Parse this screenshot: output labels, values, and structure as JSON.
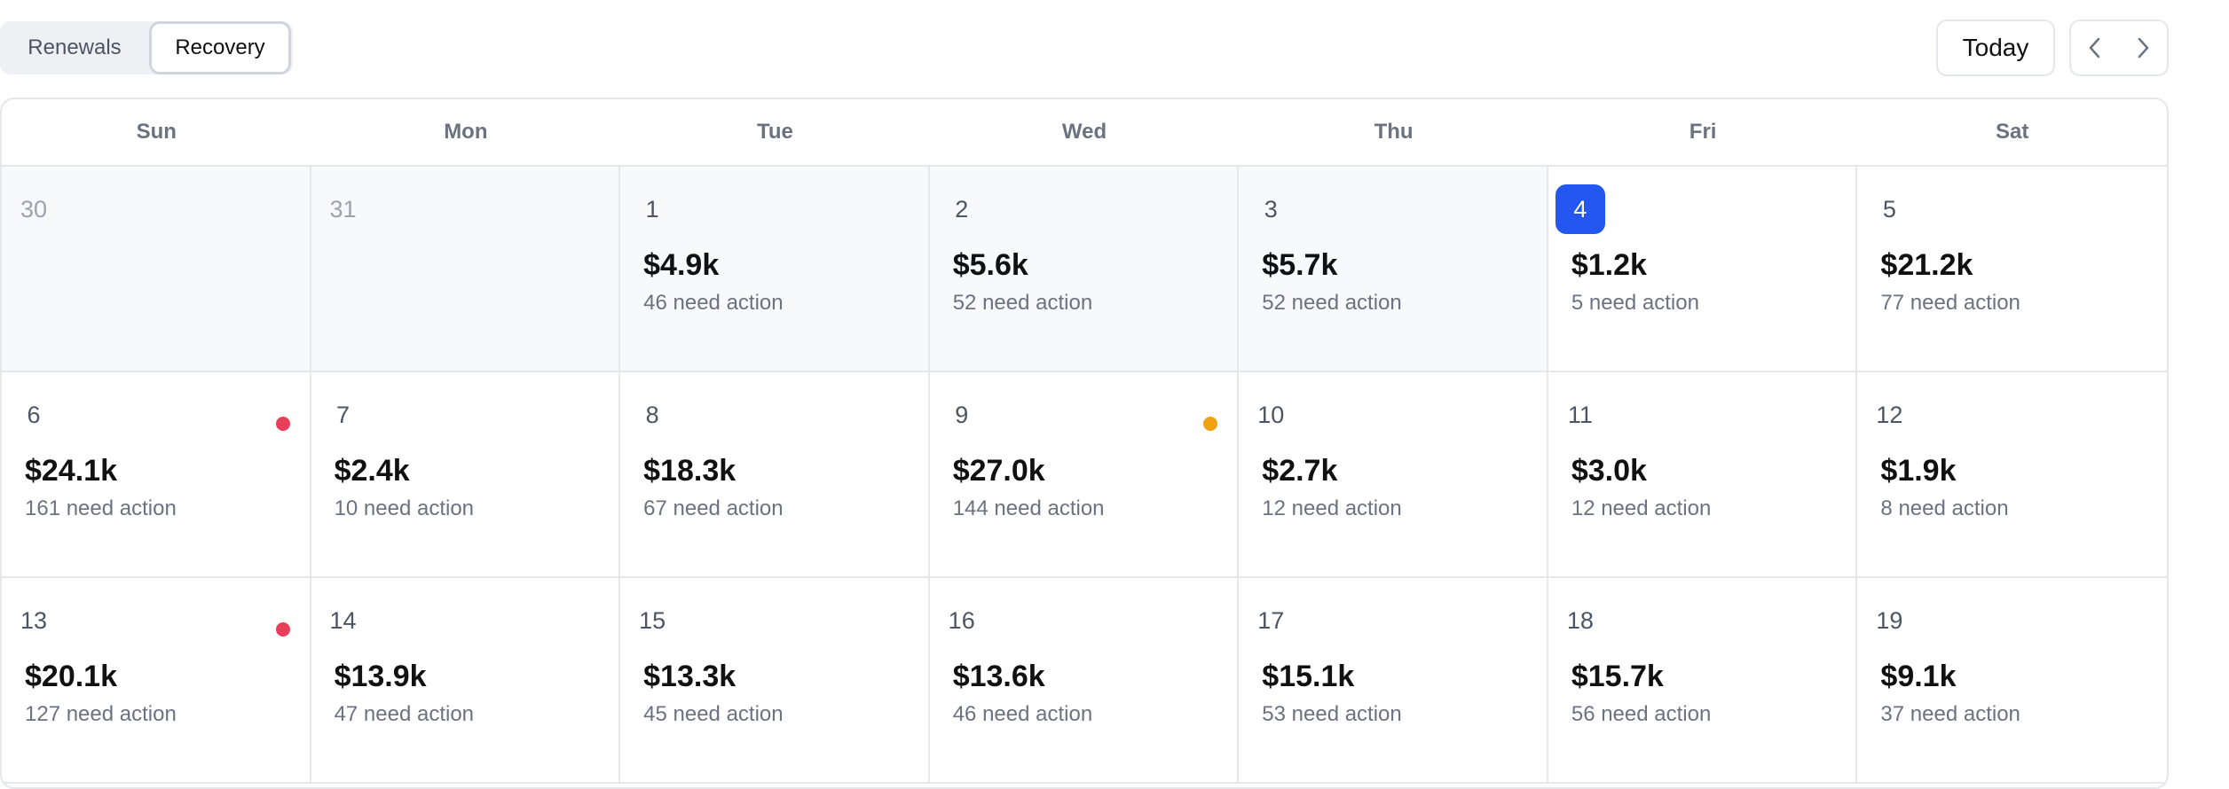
{
  "toggle": {
    "options": [
      "Renewals",
      "Recovery"
    ],
    "active": "Recovery"
  },
  "toolbar": {
    "today_label": "Today",
    "prev_icon": "chevron-left-icon",
    "next_icon": "chevron-right-icon"
  },
  "colors": {
    "today_bg": "#2456f0",
    "dot_red": "#e8405a",
    "dot_orange": "#f0a010"
  },
  "calendar": {
    "weekdays": [
      "Sun",
      "Mon",
      "Tue",
      "Wed",
      "Thu",
      "Fri",
      "Sat"
    ],
    "weeks": [
      [
        {
          "date": "30",
          "faded": true,
          "muted": true
        },
        {
          "date": "31",
          "faded": true,
          "muted": true
        },
        {
          "date": "1",
          "amount": "$4.9k",
          "need": "46 need action",
          "muted": true
        },
        {
          "date": "2",
          "amount": "$5.6k",
          "need": "52 need action",
          "muted": true
        },
        {
          "date": "3",
          "amount": "$5.7k",
          "need": "52 need action",
          "muted": true
        },
        {
          "date": "4",
          "amount": "$1.2k",
          "need": "5 need action",
          "today": true
        },
        {
          "date": "5",
          "amount": "$21.2k",
          "need": "77 need action"
        }
      ],
      [
        {
          "date": "6",
          "amount": "$24.1k",
          "need": "161 need action",
          "dot": "red"
        },
        {
          "date": "7",
          "amount": "$2.4k",
          "need": "10 need action"
        },
        {
          "date": "8",
          "amount": "$18.3k",
          "need": "67 need action"
        },
        {
          "date": "9",
          "amount": "$27.0k",
          "need": "144 need action",
          "dot": "orange"
        },
        {
          "date": "10",
          "amount": "$2.7k",
          "need": "12 need action"
        },
        {
          "date": "11",
          "amount": "$3.0k",
          "need": "12 need action"
        },
        {
          "date": "12",
          "amount": "$1.9k",
          "need": "8 need action"
        }
      ],
      [
        {
          "date": "13",
          "amount": "$20.1k",
          "need": "127 need action",
          "dot": "red"
        },
        {
          "date": "14",
          "amount": "$13.9k",
          "need": "47 need action"
        },
        {
          "date": "15",
          "amount": "$13.3k",
          "need": "45 need action"
        },
        {
          "date": "16",
          "amount": "$13.6k",
          "need": "46 need action"
        },
        {
          "date": "17",
          "amount": "$15.1k",
          "need": "53 need action"
        },
        {
          "date": "18",
          "amount": "$15.7k",
          "need": "56 need action"
        },
        {
          "date": "19",
          "amount": "$9.1k",
          "need": "37 need action"
        }
      ]
    ]
  }
}
